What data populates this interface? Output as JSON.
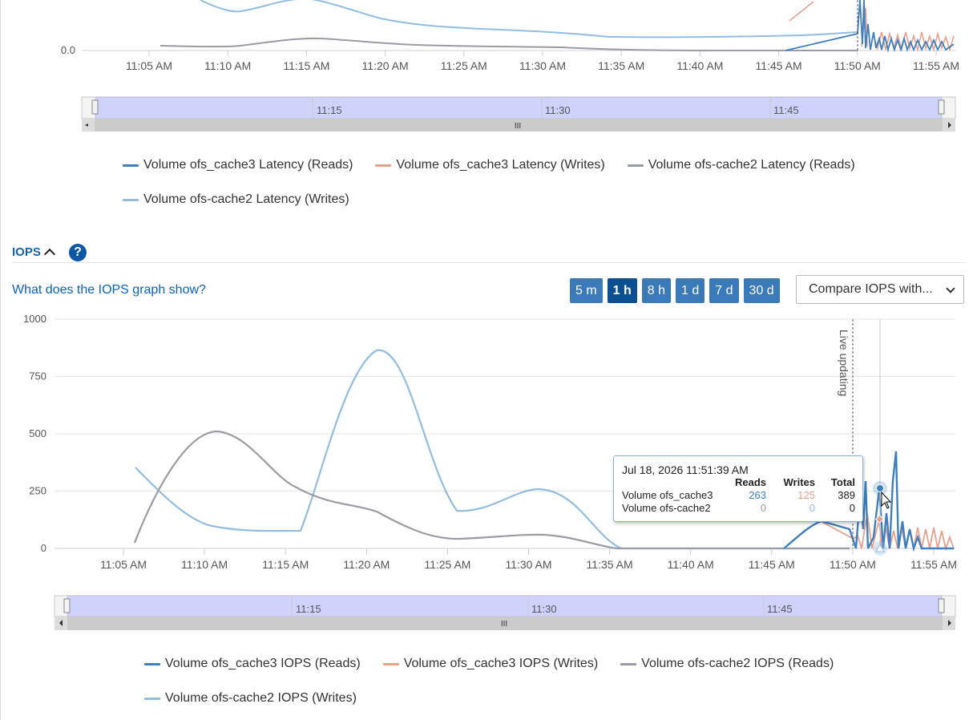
{
  "colors": {
    "c3_reads": "#3f7fbd",
    "c3_writes": "#e8a08c",
    "c2_reads": "#9a9ca3",
    "c2_writes": "#93bde0",
    "accent": "#0b56a5"
  },
  "latency": {
    "y_label_zero": "0.0",
    "x_ticks": [
      "11:05 AM",
      "11:10 AM",
      "11:15 AM",
      "11:20 AM",
      "11:25 AM",
      "11:30 AM",
      "11:35 AM",
      "11:40 AM",
      "11:45 AM",
      "11:50 AM",
      "11:55 AM"
    ],
    "navigator_labels": [
      "11:15",
      "11:30",
      "11:45"
    ],
    "legend": [
      {
        "label": "Volume ofs_cache3 Latency (Reads)",
        "color_key": "c3_reads"
      },
      {
        "label": "Volume ofs_cache3 Latency (Writes)",
        "color_key": "c3_writes"
      },
      {
        "label": "Volume ofs-cache2 Latency (Reads)",
        "color_key": "c2_reads"
      },
      {
        "label": "Volume ofs-cache2 Latency (Writes)",
        "color_key": "c2_writes"
      }
    ]
  },
  "iops": {
    "section_title": "IOPS",
    "help_icon": "?",
    "info_link": "What does the IOPS graph show?",
    "ranges": [
      {
        "label": "5 m",
        "active": false
      },
      {
        "label": "1 h",
        "active": true
      },
      {
        "label": "8 h",
        "active": false
      },
      {
        "label": "1 d",
        "active": false
      },
      {
        "label": "7 d",
        "active": false
      },
      {
        "label": "30 d",
        "active": false
      }
    ],
    "compare_select": "Compare IOPS with...",
    "live_label": "Live updating",
    "y_ticks": [
      "0",
      "250",
      "500",
      "750",
      "1000"
    ],
    "x_ticks": [
      "11:05 AM",
      "11:10 AM",
      "11:15 AM",
      "11:20 AM",
      "11:25 AM",
      "11:30 AM",
      "11:35 AM",
      "11:40 AM",
      "11:45 AM",
      "11:50 AM",
      "11:55 AM"
    ],
    "navigator_labels": [
      "11:15",
      "11:30",
      "11:45"
    ],
    "legend": [
      {
        "label": "Volume ofs_cache3 IOPS (Reads)",
        "color_key": "c3_reads"
      },
      {
        "label": "Volume ofs_cache3 IOPS (Writes)",
        "color_key": "c3_writes"
      },
      {
        "label": "Volume ofs-cache2 IOPS (Reads)",
        "color_key": "c2_reads"
      },
      {
        "label": "Volume ofs-cache2 IOPS (Writes)",
        "color_key": "c2_writes"
      }
    ],
    "tooltip": {
      "time": "Jul 18, 2026 11:51:39 AM",
      "headers": [
        "Reads",
        "Writes",
        "Total"
      ],
      "rows": [
        {
          "name": "Volume ofs_cache3",
          "reads": "263",
          "writes": "125",
          "total": "389"
        },
        {
          "name": "Volume ofs-cache2",
          "reads": "0",
          "writes": "0",
          "total": "0"
        }
      ]
    }
  },
  "chart_data": [
    {
      "type": "line",
      "title": "",
      "y_axis_label_visible": "0.0",
      "x": [
        "11:05 AM",
        "11:10 AM",
        "11:15 AM",
        "11:20 AM",
        "11:25 AM",
        "11:30 AM",
        "11:35 AM",
        "11:40 AM",
        "11:45 AM",
        "11:50 AM",
        "11:55 AM"
      ],
      "series": [
        {
          "name": "Volume ofs_cache3 Latency (Reads)"
        },
        {
          "name": "Volume ofs_cache3 Latency (Writes)"
        },
        {
          "name": "Volume ofs-cache2 Latency (Reads)"
        },
        {
          "name": "Volume ofs-cache2 Latency (Writes)"
        }
      ]
    },
    {
      "type": "line",
      "title": "",
      "ylim": [
        0,
        1000
      ],
      "y_ticks": [
        0,
        250,
        500,
        750,
        1000
      ],
      "x": [
        "11:05 AM",
        "11:10 AM",
        "11:15 AM",
        "11:20 AM",
        "11:25 AM",
        "11:30 AM",
        "11:35 AM",
        "11:40 AM",
        "11:45 AM",
        "11:50 AM",
        "11:55 AM"
      ],
      "series": [
        {
          "name": "Volume ofs_cache3 IOPS (Reads)",
          "values": [
            0,
            0,
            0,
            0,
            0,
            0,
            0,
            0,
            0,
            0,
            0
          ]
        },
        {
          "name": "Volume ofs_cache3 IOPS (Writes)",
          "values": [
            0,
            0,
            0,
            0,
            0,
            0,
            0,
            0,
            0,
            0,
            0
          ]
        },
        {
          "name": "Volume ofs-cache2 IOPS (Reads)",
          "values": [
            30,
            510,
            270,
            160,
            45,
            65,
            0,
            0,
            0,
            0,
            0
          ]
        },
        {
          "name": "Volume ofs-cache2 IOPS (Writes)",
          "values": [
            360,
            110,
            80,
            860,
            170,
            260,
            0,
            0,
            0,
            0,
            0
          ]
        }
      ],
      "tooltip_point": {
        "time": "Jul 18, 2026 11:51:39 AM",
        "series": "Volume ofs_cache3",
        "reads": 263,
        "writes": 125,
        "total": 389
      }
    }
  ]
}
